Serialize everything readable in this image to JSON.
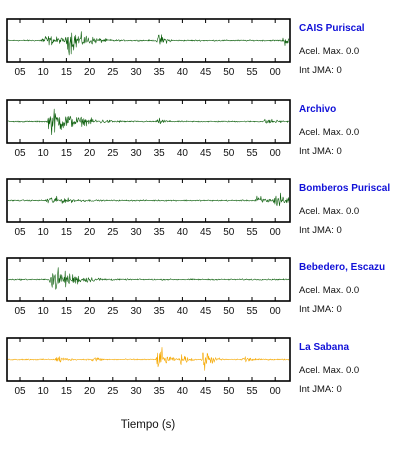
{
  "chart_data": {
    "type": "line",
    "xlabel": "Tiempo (s)",
    "x_tick_labels": [
      "05",
      "10",
      "15",
      "20",
      "25",
      "30",
      "35",
      "40",
      "45",
      "50",
      "55",
      "00"
    ],
    "grid": false,
    "series": [
      {
        "name": "CAIS Puriscal",
        "color": "#0b5e0b",
        "acel_text": "Acel. Max. 0.0",
        "int_text": "Int JMA: 0",
        "events": [
          {
            "t": 8,
            "amp": 0.45,
            "decay": 5
          },
          {
            "t": 13.5,
            "amp": 1.0,
            "decay": 4
          },
          {
            "t": 33.5,
            "amp": 0.55,
            "decay": 1.5
          },
          {
            "t": 61,
            "amp": 0.4,
            "decay": 3
          }
        ]
      },
      {
        "name": "Archivo",
        "color": "#0b5e0b",
        "acel_text": "Acel. Max. 0.0",
        "int_text": "Int JMA: 0",
        "events": [
          {
            "t": 9.5,
            "amp": 1.0,
            "decay": 6
          },
          {
            "t": 33.5,
            "amp": 0.25,
            "decay": 2
          },
          {
            "t": 57,
            "amp": 0.25,
            "decay": 3
          }
        ]
      },
      {
        "name": "Bomberos Puriscal",
        "color": "#0b5e0b",
        "acel_text": "Acel. Max. 0.0",
        "int_text": "Int JMA: 0",
        "events": [
          {
            "t": 9,
            "amp": 0.35,
            "decay": 6
          },
          {
            "t": 55,
            "amp": 0.4,
            "decay": 3
          },
          {
            "t": 59.5,
            "amp": 1.0,
            "decay": 1.5
          }
        ]
      },
      {
        "name": "Bebedero, Escazu",
        "color": "#0b5e0b",
        "acel_text": "Acel. Max. 0.0",
        "int_text": "Int JMA: 0",
        "events": [
          {
            "t": 10,
            "amp": 1.0,
            "decay": 5
          }
        ]
      },
      {
        "name": "La Sabana",
        "color": "#f5a800",
        "acel_text": "Acel. Max. 0.0",
        "int_text": "Int JMA: 0",
        "events": [
          {
            "t": 11,
            "amp": 0.35,
            "decay": 2
          },
          {
            "t": 19,
            "amp": 0.3,
            "decay": 1.5
          },
          {
            "t": 33.5,
            "amp": 1.0,
            "decay": 1.5
          },
          {
            "t": 38,
            "amp": 0.4,
            "decay": 2
          },
          {
            "t": 43.5,
            "amp": 0.9,
            "decay": 1.5
          },
          {
            "t": 52,
            "amp": 0.3,
            "decay": 2
          }
        ]
      }
    ]
  }
}
